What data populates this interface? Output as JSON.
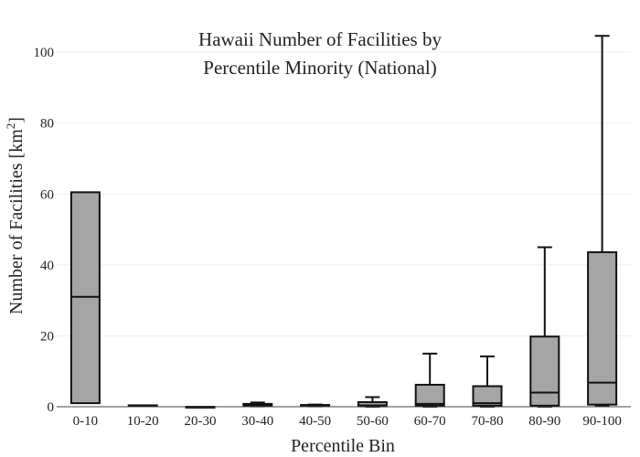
{
  "chart_data": {
    "type": "box",
    "title": [
      "Hawaii Number of Facilities by",
      "Percentile Minority (National)"
    ],
    "xlabel": "Percentile Bin",
    "ylabel_main": "Number of Facilities  [km",
    "ylabel_sup": "2",
    "ylabel_close": "]",
    "ylim": [
      0,
      107
    ],
    "yticks": [
      0,
      20,
      40,
      60,
      80,
      100
    ],
    "grid": true,
    "legend": "none",
    "box_fill": "#a5a5a5",
    "box_stroke": "#111111",
    "grid_color": "#eeeeee",
    "axis_color": "#444444",
    "categories": [
      "0-10",
      "10-20",
      "20-30",
      "30-40",
      "40-50",
      "50-60",
      "60-70",
      "70-80",
      "80-90",
      "90-100"
    ],
    "boxes": [
      {
        "min": 1,
        "q1": 1,
        "median": 31,
        "q3": 60.5,
        "max": 60.5
      },
      {
        "min": 0.2,
        "q1": 0.2,
        "median": 0.3,
        "q3": 0.4,
        "max": 0.4
      },
      {
        "min": 0,
        "q1": 0,
        "median": 0,
        "q3": 0,
        "max": 0
      },
      {
        "min": 0.1,
        "q1": 0.2,
        "median": 0.5,
        "q3": 0.8,
        "max": 1.2
      },
      {
        "min": 0.1,
        "q1": 0.2,
        "median": 0.3,
        "q3": 0.5,
        "max": 0.6
      },
      {
        "min": 0,
        "q1": 0.1,
        "median": 0.4,
        "q3": 1.3,
        "max": 2.7
      },
      {
        "min": 0,
        "q1": 0.3,
        "median": 0.8,
        "q3": 6.2,
        "max": 15
      },
      {
        "min": 0,
        "q1": 0.3,
        "median": 1,
        "q3": 5.8,
        "max": 14.2
      },
      {
        "min": 0,
        "q1": 0.3,
        "median": 4,
        "q3": 19.8,
        "max": 45
      },
      {
        "min": 0.3,
        "q1": 0.6,
        "median": 6.8,
        "q3": 43.6,
        "max": 104.6
      }
    ]
  }
}
